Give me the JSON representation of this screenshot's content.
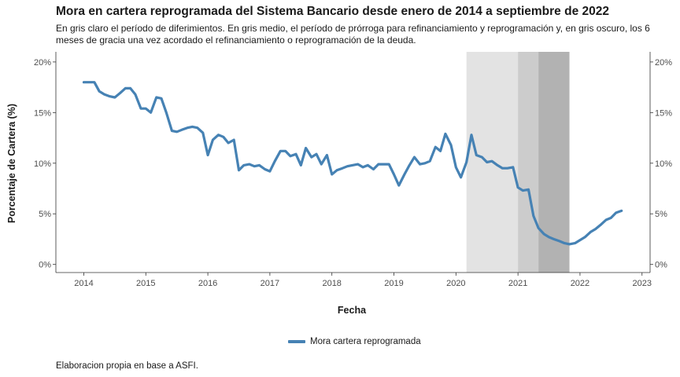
{
  "chart_data": {
    "type": "line",
    "title": "Mora en cartera reprogramada del Sistema Bancario desde enero de 2014 a septiembre de 2022",
    "subtitle": "En gris claro el período de diferimientos. En gris medio, el período de prórroga para refinanciamiento y reprogramación y, en gris oscuro, los 6 meses de gracia una vez acordado el refinanciamiento o reprogramación de la deuda.",
    "xlabel": "Fecha",
    "ylabel": "Porcentaje de Cartera (%)",
    "caption": "Elaboracion propia en base a ASFI.",
    "xlim": [
      2013.55,
      2023.13
    ],
    "ylim": [
      -0.8,
      21.0
    ],
    "x_ticks": [
      2014,
      2015,
      2016,
      2017,
      2018,
      2019,
      2020,
      2021,
      2022,
      2023
    ],
    "y_ticks": [
      0,
      5,
      10,
      15,
      20
    ],
    "y_tick_labels": [
      "0%",
      "5%",
      "10%",
      "15%",
      "20%"
    ],
    "secondary_y_axis": true,
    "grid": false,
    "legend_position": "bottom",
    "shaded_periods": [
      {
        "start": 2020.17,
        "end": 2021.0,
        "color": "#e3e3e3"
      },
      {
        "start": 2021.0,
        "end": 2021.33,
        "color": "#cccccc"
      },
      {
        "start": 2021.33,
        "end": 2021.83,
        "color": "#b2b2b2"
      }
    ],
    "series": [
      {
        "name": "Mora cartera reprogramada",
        "color": "#4682B4",
        "x": [
          2014.0,
          2014.08,
          2014.17,
          2014.25,
          2014.33,
          2014.42,
          2014.5,
          2014.58,
          2014.67,
          2014.75,
          2014.83,
          2014.92,
          2015.0,
          2015.08,
          2015.17,
          2015.25,
          2015.33,
          2015.42,
          2015.5,
          2015.58,
          2015.67,
          2015.75,
          2015.83,
          2015.92,
          2016.0,
          2016.08,
          2016.17,
          2016.25,
          2016.33,
          2016.42,
          2016.5,
          2016.58,
          2016.67,
          2016.75,
          2016.83,
          2016.92,
          2017.0,
          2017.08,
          2017.17,
          2017.25,
          2017.33,
          2017.42,
          2017.5,
          2017.58,
          2017.67,
          2017.75,
          2017.83,
          2017.92,
          2018.0,
          2018.08,
          2018.17,
          2018.25,
          2018.33,
          2018.42,
          2018.5,
          2018.58,
          2018.67,
          2018.75,
          2018.83,
          2018.92,
          2019.0,
          2019.08,
          2019.17,
          2019.25,
          2019.33,
          2019.42,
          2019.5,
          2019.58,
          2019.67,
          2019.75,
          2019.83,
          2019.92,
          2020.0,
          2020.08,
          2020.17,
          2020.25,
          2020.33,
          2020.42,
          2020.5,
          2020.58,
          2020.67,
          2020.75,
          2020.83,
          2020.92,
          2021.0,
          2021.08,
          2021.17,
          2021.25,
          2021.33,
          2021.42,
          2021.5,
          2021.58,
          2021.67,
          2021.75,
          2021.83,
          2021.92,
          2022.0,
          2022.08,
          2022.17,
          2022.25,
          2022.33,
          2022.42,
          2022.5,
          2022.58,
          2022.67
        ],
        "y": [
          18.0,
          18.0,
          18.0,
          17.1,
          16.8,
          16.6,
          16.5,
          16.9,
          17.4,
          17.4,
          16.8,
          15.4,
          15.4,
          15.0,
          16.5,
          16.4,
          15.0,
          13.2,
          13.1,
          13.3,
          13.5,
          13.6,
          13.5,
          13.0,
          10.8,
          12.3,
          12.8,
          12.6,
          12.0,
          12.3,
          9.3,
          9.8,
          9.9,
          9.7,
          9.8,
          9.4,
          9.2,
          10.2,
          11.2,
          11.2,
          10.7,
          10.9,
          9.8,
          11.5,
          10.6,
          10.9,
          9.9,
          10.8,
          8.9,
          9.3,
          9.5,
          9.7,
          9.8,
          9.9,
          9.6,
          9.8,
          9.4,
          9.9,
          9.9,
          9.9,
          8.9,
          7.8,
          8.9,
          9.8,
          10.6,
          9.9,
          10.0,
          10.2,
          11.6,
          11.2,
          12.9,
          11.8,
          9.6,
          8.6,
          10.1,
          12.8,
          10.8,
          10.6,
          10.1,
          10.2,
          9.8,
          9.5,
          9.5,
          9.6,
          7.6,
          7.3,
          7.4,
          4.8,
          3.6,
          3.0,
          2.7,
          2.5,
          2.3,
          2.1,
          2.0,
          2.1,
          2.4,
          2.7,
          3.2,
          3.5,
          3.9,
          4.4,
          4.6,
          5.1,
          5.3
        ]
      }
    ]
  }
}
